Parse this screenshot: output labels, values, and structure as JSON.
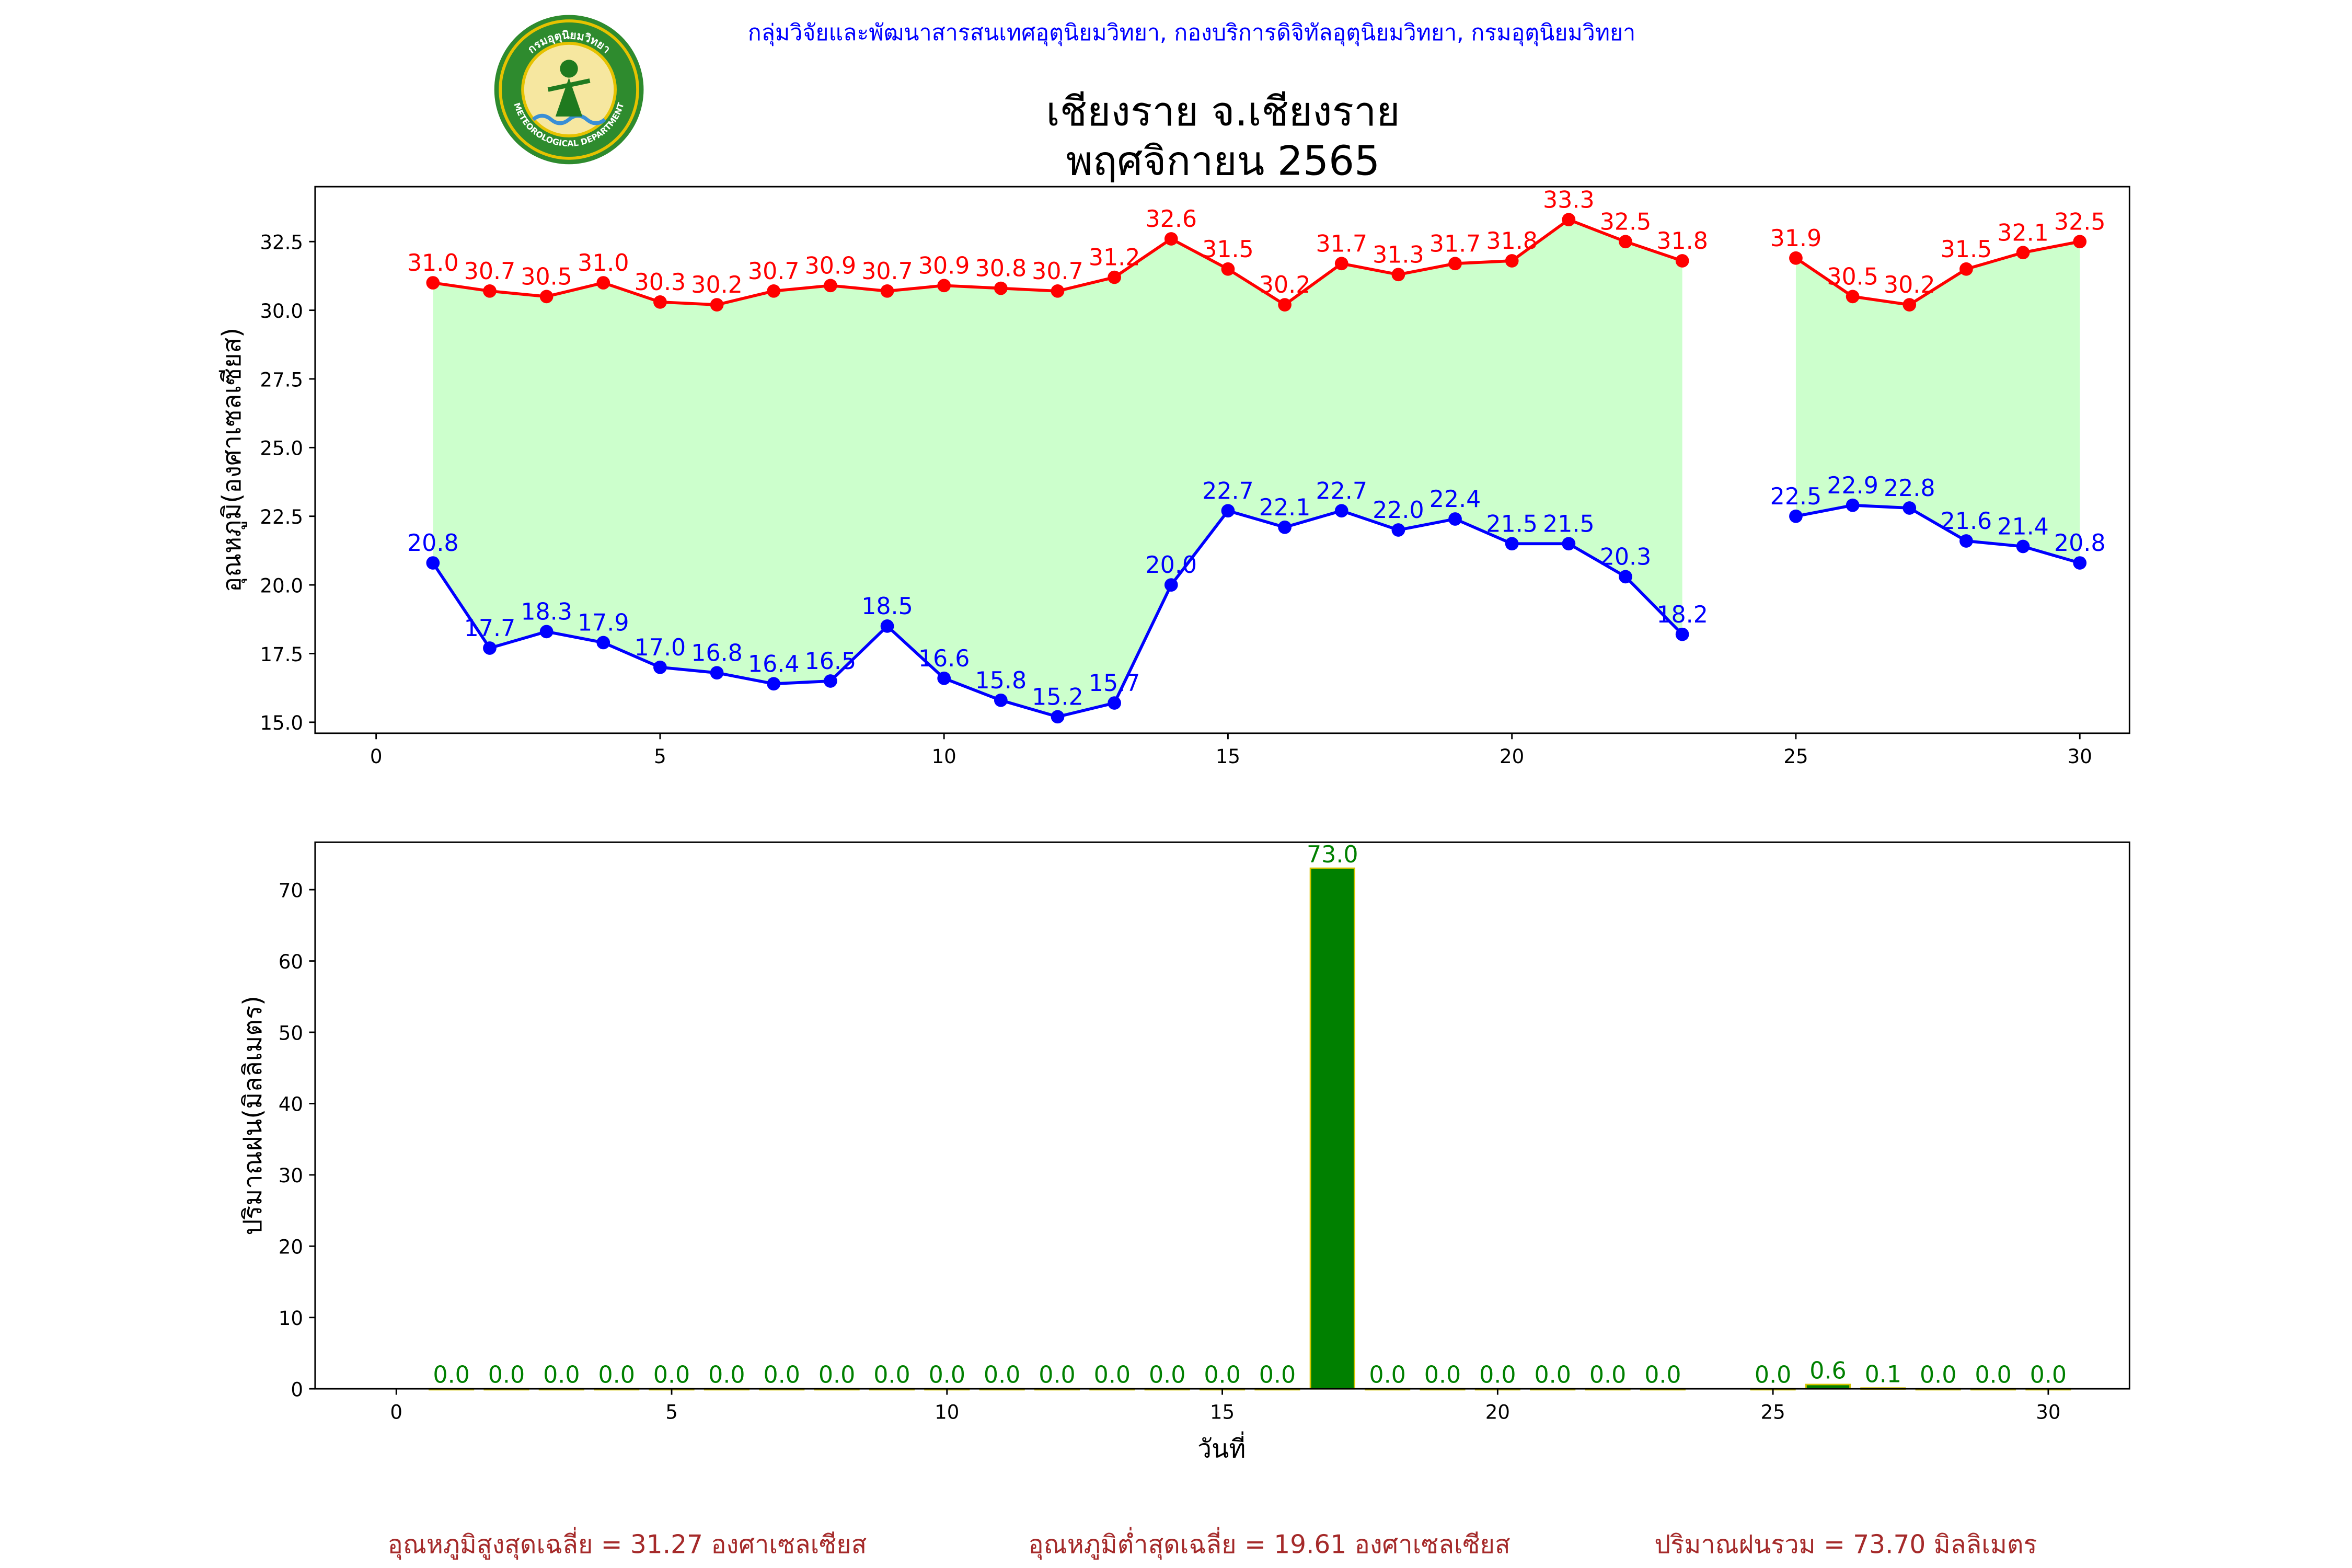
{
  "header": {
    "agency": "กลุ่มวิจัยและพัฒนาสารสนเทศอุตุนิยมวิทยา, กองบริการดิจิทัลอุตุนิยมวิทยา, กรมอุตุนิยมวิทยา",
    "station": "เชียงราย จ.เชียงราย",
    "period": "พฤศจิกายน 2565",
    "logo_text_top": "กรมอุตุนิยมวิทยา",
    "logo_text_bottom": "METEOROLOGICAL DEPARTMENT"
  },
  "colors": {
    "max_temp": "#ff0000",
    "min_temp": "#0000ff",
    "fill": "#ccffcc",
    "rain_bar": "#008000",
    "rain_edge": "#d4c400",
    "rain_label": "#008000",
    "agency_text": "#0000ff",
    "footer_text": "#a52a2a"
  },
  "chart_data": [
    {
      "type": "line",
      "ylabel": "อุณหภูมิ(องศาเซลเซียส)",
      "xlabel": "",
      "xlim": [
        -1.075,
        30.875
      ],
      "ylim": [
        14.6,
        34.5
      ],
      "xticks": [
        0,
        5,
        10,
        15,
        20,
        25,
        30
      ],
      "yticks": [
        "15.0",
        "17.5",
        "20.0",
        "22.5",
        "25.0",
        "27.5",
        "30.0",
        "32.5"
      ],
      "x": [
        1,
        2,
        3,
        4,
        5,
        6,
        7,
        8,
        9,
        10,
        11,
        12,
        13,
        14,
        15,
        16,
        17,
        18,
        19,
        20,
        21,
        22,
        23,
        25,
        26,
        27,
        28,
        29,
        30
      ],
      "series": [
        {
          "key": "max",
          "values": [
            31.0,
            30.7,
            30.5,
            31.0,
            30.3,
            30.2,
            30.7,
            30.9,
            30.7,
            30.9,
            30.8,
            30.7,
            31.2,
            32.6,
            31.5,
            30.2,
            31.7,
            31.3,
            31.7,
            31.8,
            33.3,
            32.5,
            31.8,
            31.9,
            30.5,
            30.2,
            31.5,
            32.1,
            32.5
          ]
        },
        {
          "key": "min",
          "values": [
            20.8,
            17.7,
            18.3,
            17.9,
            17.0,
            16.8,
            16.4,
            16.5,
            18.5,
            16.6,
            15.8,
            15.2,
            15.7,
            20.0,
            22.7,
            22.1,
            22.7,
            22.0,
            22.4,
            21.5,
            21.5,
            20.3,
            18.2,
            22.5,
            22.9,
            22.8,
            21.6,
            21.4,
            20.8
          ]
        }
      ],
      "gap_after_x": 23
    },
    {
      "type": "bar",
      "ylabel": "ปริมาณฝน(มิลลิเมตร)",
      "xlabel": "วันที่",
      "xlim": [
        -1.475,
        31.475
      ],
      "ylim": [
        0,
        76.65
      ],
      "xticks": [
        0,
        5,
        10,
        15,
        20,
        25,
        30
      ],
      "yticks": [
        "0",
        "10",
        "20",
        "30",
        "40",
        "50",
        "60",
        "70"
      ],
      "x": [
        1,
        2,
        3,
        4,
        5,
        6,
        7,
        8,
        9,
        10,
        11,
        12,
        13,
        14,
        15,
        16,
        17,
        18,
        19,
        20,
        21,
        22,
        23,
        25,
        26,
        27,
        28,
        29,
        30
      ],
      "values": [
        0.0,
        0.0,
        0.0,
        0.0,
        0.0,
        0.0,
        0.0,
        0.0,
        0.0,
        0.0,
        0.0,
        0.0,
        0.0,
        0.0,
        0.0,
        0.0,
        73.0,
        0.0,
        0.0,
        0.0,
        0.0,
        0.0,
        0.0,
        0.0,
        0.6,
        0.1,
        0.0,
        0.0,
        0.0
      ]
    }
  ],
  "footer": {
    "avg_max": "อุณหภูมิสูงสุดเฉลี่ย = 31.27 องศาเซลเซียส",
    "avg_min": "อุณหภูมิต่ำสุดเฉลี่ย = 19.61 องศาเซลเซียส",
    "total_rain": "ปริมาณฝนรวม = 73.70 มิลลิเมตร"
  }
}
